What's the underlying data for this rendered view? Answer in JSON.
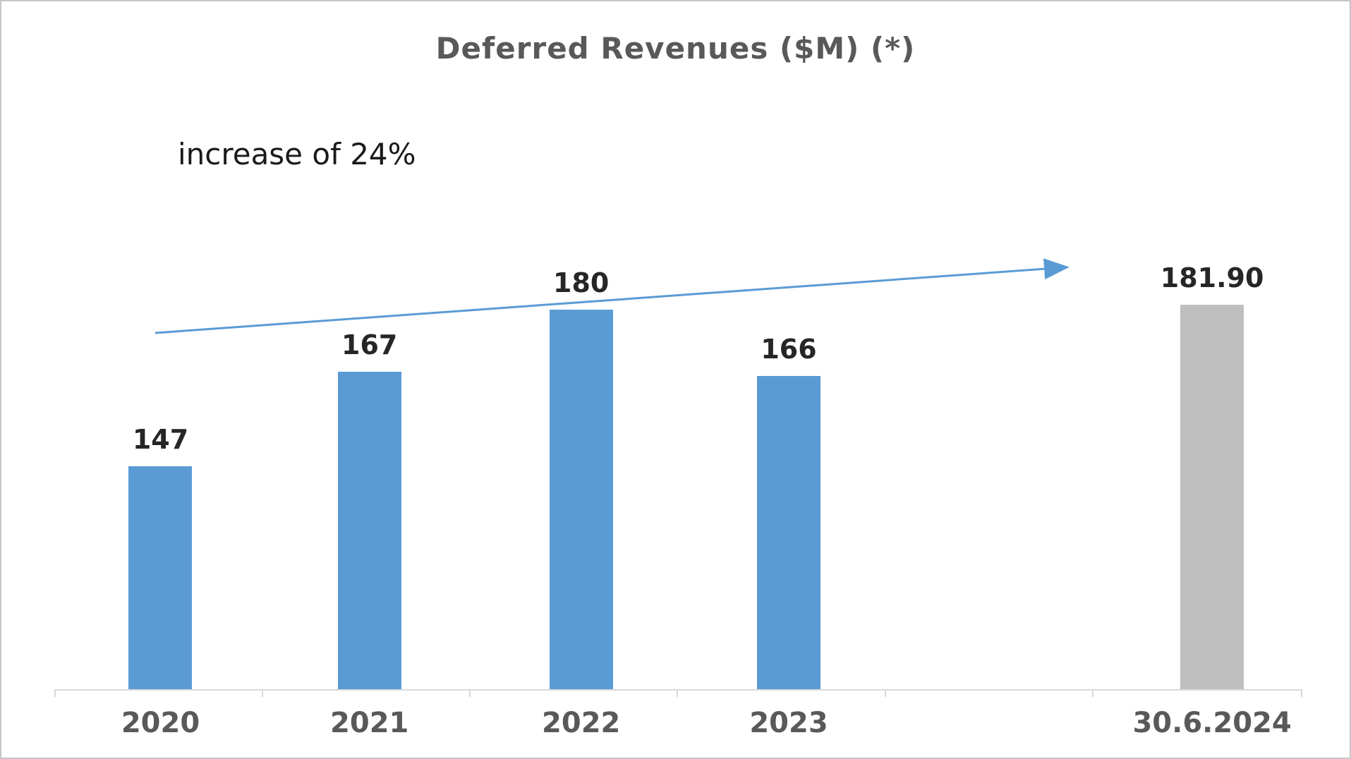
{
  "title": "Deferred Revenues ($M) (*)",
  "annotation": "increase of 24%",
  "colors": {
    "bar_blue": "#5b9bd5",
    "bar_gray": "#bfbfbf",
    "axis": "#d9d9d9",
    "title_text": "#595959",
    "arrow": "#5b9bd5"
  },
  "chart_data": {
    "type": "bar",
    "title": "Deferred Revenues ($M) (*)",
    "categories": [
      "2020",
      "2021",
      "2022",
      "2023",
      "30.6.2024"
    ],
    "values": [
      147,
      167,
      180,
      166,
      181.9
    ],
    "value_labels": [
      "147",
      "167",
      "180",
      "166",
      "181.90"
    ],
    "bar_colors": [
      "#5b9bd5",
      "#5b9bd5",
      "#5b9bd5",
      "#5b9bd5",
      "#bfbfbf"
    ],
    "xlabel": "",
    "ylabel": "",
    "ylim": [
      100,
      190
    ],
    "grid": false,
    "legend": "none",
    "annotations": [
      "increase of 24%"
    ],
    "arrow_color": "#5b9bd5"
  }
}
